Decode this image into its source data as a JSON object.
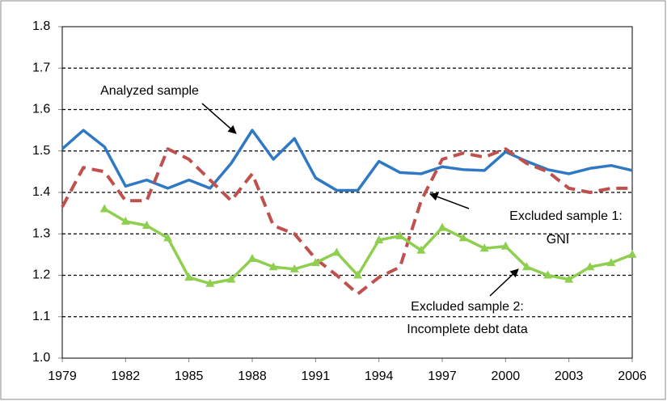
{
  "chart_data": {
    "type": "line",
    "x": [
      1979,
      1980,
      1981,
      1982,
      1983,
      1984,
      1985,
      1986,
      1987,
      1988,
      1989,
      1990,
      1991,
      1992,
      1993,
      1994,
      1995,
      1996,
      1997,
      1998,
      1999,
      2000,
      2001,
      2002,
      2003,
      2004,
      2005,
      2006
    ],
    "series": [
      {
        "name": "Analyzed sample",
        "color": "#2f78c4",
        "dash": false,
        "marker": false,
        "values": [
          1.505,
          1.55,
          1.51,
          1.415,
          1.43,
          1.41,
          1.43,
          1.41,
          1.47,
          1.55,
          1.48,
          1.53,
          1.435,
          1.405,
          1.405,
          1.475,
          1.448,
          1.445,
          1.462,
          1.455,
          1.453,
          1.498,
          1.475,
          1.455,
          1.445,
          1.458,
          1.465,
          1.453
        ]
      },
      {
        "name": "Excluded sample 1: GNI",
        "color": "#c0504d",
        "dash": true,
        "marker": false,
        "values": [
          1.365,
          1.46,
          1.45,
          1.38,
          1.38,
          1.505,
          1.48,
          1.43,
          1.38,
          1.445,
          1.32,
          1.3,
          1.24,
          1.2,
          1.155,
          1.195,
          1.22,
          1.38,
          1.48,
          1.495,
          1.485,
          1.505,
          1.47,
          1.45,
          1.41,
          1.4,
          1.41,
          1.41
        ]
      },
      {
        "name": "Excluded sample 2: Incomplete debt data",
        "color": "#8fcf4f",
        "dash": false,
        "marker": true,
        "values": [
          null,
          null,
          1.36,
          1.33,
          1.32,
          1.29,
          1.195,
          1.18,
          1.19,
          1.24,
          1.22,
          1.215,
          1.23,
          1.255,
          1.2,
          1.285,
          1.295,
          1.26,
          1.315,
          1.29,
          1.265,
          1.27,
          1.22,
          1.2,
          1.19,
          1.22,
          1.23,
          1.25
        ]
      }
    ],
    "xlim": [
      1979,
      2006
    ],
    "xticks": [
      1979,
      1982,
      1985,
      1988,
      1991,
      1994,
      1997,
      2000,
      2003,
      2006
    ],
    "ylim": [
      1.0,
      1.8
    ],
    "yticks": [
      {
        "value": 1.0,
        "label": "1.0"
      },
      1.1,
      1.2,
      1.3,
      1.4,
      1.5,
      1.6,
      1.7,
      1.8
    ],
    "grid": true,
    "annotations": [
      {
        "lines": [
          "Analyzed sample"
        ]
      },
      {
        "lines": [
          "Excluded sample 1:",
          "GNI"
        ]
      },
      {
        "lines": [
          "Excluded sample 2:",
          "Incomplete debt data"
        ]
      }
    ]
  }
}
